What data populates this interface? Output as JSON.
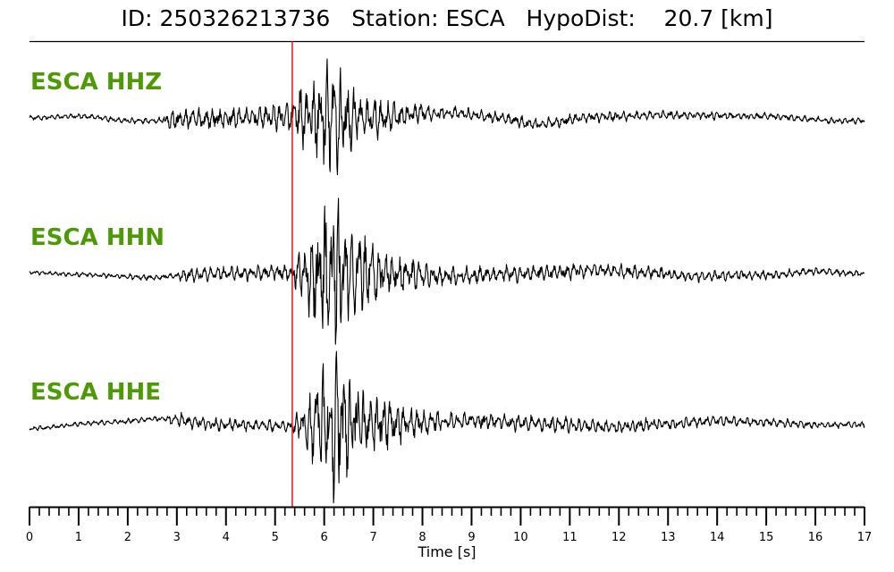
{
  "title": {
    "id_label": "ID:",
    "id_value": "250326213736",
    "station_label": "Station:",
    "station_value": "ESCA",
    "dist_label": "HypoDist:",
    "dist_value": "20.7",
    "dist_unit": "[km]"
  },
  "chart_data": {
    "type": "line",
    "title": "ID: 250326213736   Station: ESCA   HypoDist:    20.7 [km]",
    "xlabel": "Time [s]",
    "ylabel": "",
    "xlim": [
      0,
      17
    ],
    "x_major_ticks": [
      0,
      1,
      2,
      3,
      4,
      5,
      6,
      7,
      8,
      9,
      10,
      11,
      12,
      13,
      14,
      15,
      16,
      17
    ],
    "x_minor_step": 0.2,
    "grid": false,
    "marker_line": {
      "x": 5.35,
      "color": "#e8000b"
    },
    "label_color": "#4e9a06",
    "trace_color": "#000000",
    "series": [
      {
        "name": "ESCA HHZ",
        "envelope": [
          [
            0,
            0.04
          ],
          [
            2.7,
            0.05
          ],
          [
            2.8,
            0.18
          ],
          [
            4.5,
            0.17
          ],
          [
            5.2,
            0.22
          ],
          [
            5.6,
            0.55
          ],
          [
            6.0,
            0.8
          ],
          [
            6.2,
            1.0
          ],
          [
            6.5,
            0.6
          ],
          [
            7.0,
            0.35
          ],
          [
            7.8,
            0.18
          ],
          [
            8.5,
            0.1
          ],
          [
            17,
            0.05
          ]
        ],
        "drift": [
          [
            0,
            0.0
          ],
          [
            1.0,
            0.08
          ],
          [
            2.2,
            -0.15
          ],
          [
            3.5,
            -0.05
          ],
          [
            5.0,
            0.05
          ],
          [
            6.5,
            -0.05
          ],
          [
            8.5,
            0.25
          ],
          [
            9.5,
            0.05
          ],
          [
            10.3,
            -0.3
          ],
          [
            11.5,
            0.05
          ],
          [
            13.0,
            0.15
          ],
          [
            15.0,
            0.08
          ],
          [
            16.5,
            -0.15
          ],
          [
            17.0,
            -0.12
          ]
        ]
      },
      {
        "name": "ESCA HHN",
        "envelope": [
          [
            0,
            0.03
          ],
          [
            3.0,
            0.04
          ],
          [
            3.1,
            0.1
          ],
          [
            5.3,
            0.1
          ],
          [
            5.5,
            0.3
          ],
          [
            5.8,
            0.7
          ],
          [
            6.1,
            1.0
          ],
          [
            6.4,
            0.8
          ],
          [
            6.9,
            0.5
          ],
          [
            7.5,
            0.25
          ],
          [
            8.5,
            0.12
          ],
          [
            17,
            0.05
          ]
        ],
        "drift": [
          [
            0,
            0.0
          ],
          [
            1.0,
            -0.08
          ],
          [
            2.5,
            -0.2
          ],
          [
            3.5,
            -0.05
          ],
          [
            5.0,
            0.0
          ],
          [
            7.0,
            -0.05
          ],
          [
            8.5,
            -0.15
          ],
          [
            10.0,
            -0.05
          ],
          [
            11.5,
            0.08
          ],
          [
            12.5,
            0.0
          ],
          [
            13.5,
            -0.15
          ],
          [
            15.0,
            -0.1
          ],
          [
            16.0,
            0.05
          ],
          [
            17.0,
            -0.05
          ]
        ]
      },
      {
        "name": "ESCA HHE",
        "envelope": [
          [
            0,
            0.03
          ],
          [
            2.8,
            0.04
          ],
          [
            2.9,
            0.1
          ],
          [
            5.3,
            0.08
          ],
          [
            5.5,
            0.2
          ],
          [
            5.9,
            0.7
          ],
          [
            6.2,
            1.0
          ],
          [
            6.5,
            0.65
          ],
          [
            7.0,
            0.4
          ],
          [
            7.8,
            0.22
          ],
          [
            8.5,
            0.12
          ],
          [
            17,
            0.05
          ]
        ],
        "drift": [
          [
            0,
            -0.2
          ],
          [
            1.5,
            0.05
          ],
          [
            2.7,
            0.2
          ],
          [
            4.0,
            -0.05
          ],
          [
            5.5,
            -0.1
          ],
          [
            7.5,
            0.0
          ],
          [
            9.0,
            0.12
          ],
          [
            10.5,
            0.0
          ],
          [
            11.8,
            -0.15
          ],
          [
            13.0,
            0.0
          ],
          [
            14.0,
            0.12
          ],
          [
            15.0,
            0.05
          ],
          [
            16.0,
            -0.05
          ],
          [
            17.0,
            -0.05
          ]
        ]
      }
    ]
  }
}
